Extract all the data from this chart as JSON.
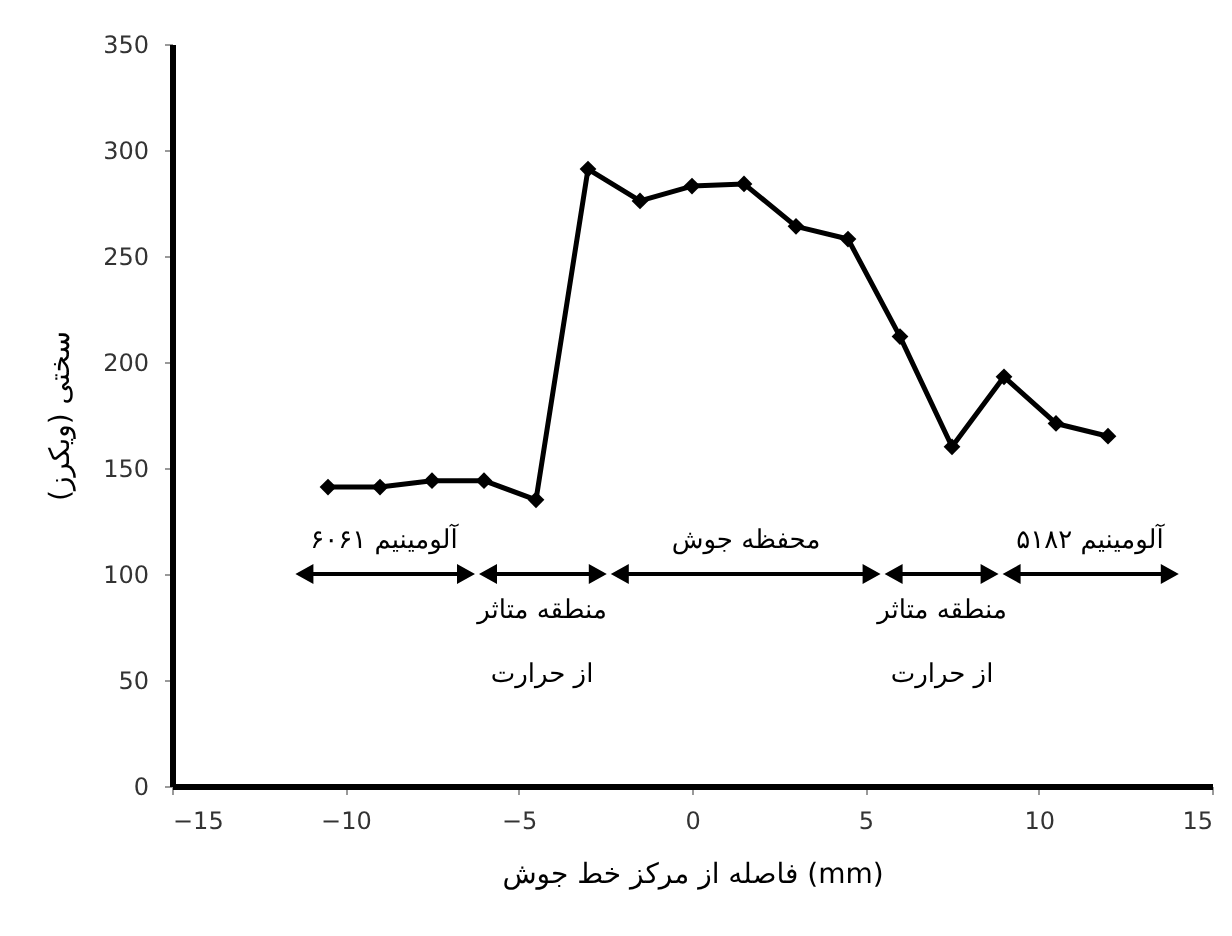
{
  "chart_data": {
    "type": "line",
    "xlabel": "فاصله از مرکز خط جوش (mm)",
    "ylabel": "سختی (ویکرز)",
    "x": [
      -10.5,
      -9,
      -7.5,
      -6,
      -4.5,
      -3,
      -1.5,
      0,
      1.5,
      3,
      4.5,
      6,
      7.5,
      9,
      10.5,
      12
    ],
    "series": [
      {
        "color": "#000000",
        "values": [
          141,
          141,
          144,
          144,
          135,
          291,
          276,
          283,
          284,
          264,
          258,
          212,
          160,
          193,
          171,
          165
        ]
      }
    ],
    "xlim": [
      -15,
      15
    ],
    "xticks": [
      -15,
      -10,
      -5,
      0,
      5,
      10,
      15
    ],
    "ylim": [
      0,
      350
    ],
    "yticks": [
      0,
      50,
      100,
      150,
      200,
      250,
      300,
      350
    ],
    "marker": "diamond",
    "line_style": "solid",
    "grid": false,
    "annotations": [
      "آلومینیم ۶۰۶۱",
      "منطقه متاثر از حرارت",
      "محفظه جوش",
      "منطقه متاثر از حرارت",
      "آلومینیم ۵۱۸۲"
    ]
  }
}
